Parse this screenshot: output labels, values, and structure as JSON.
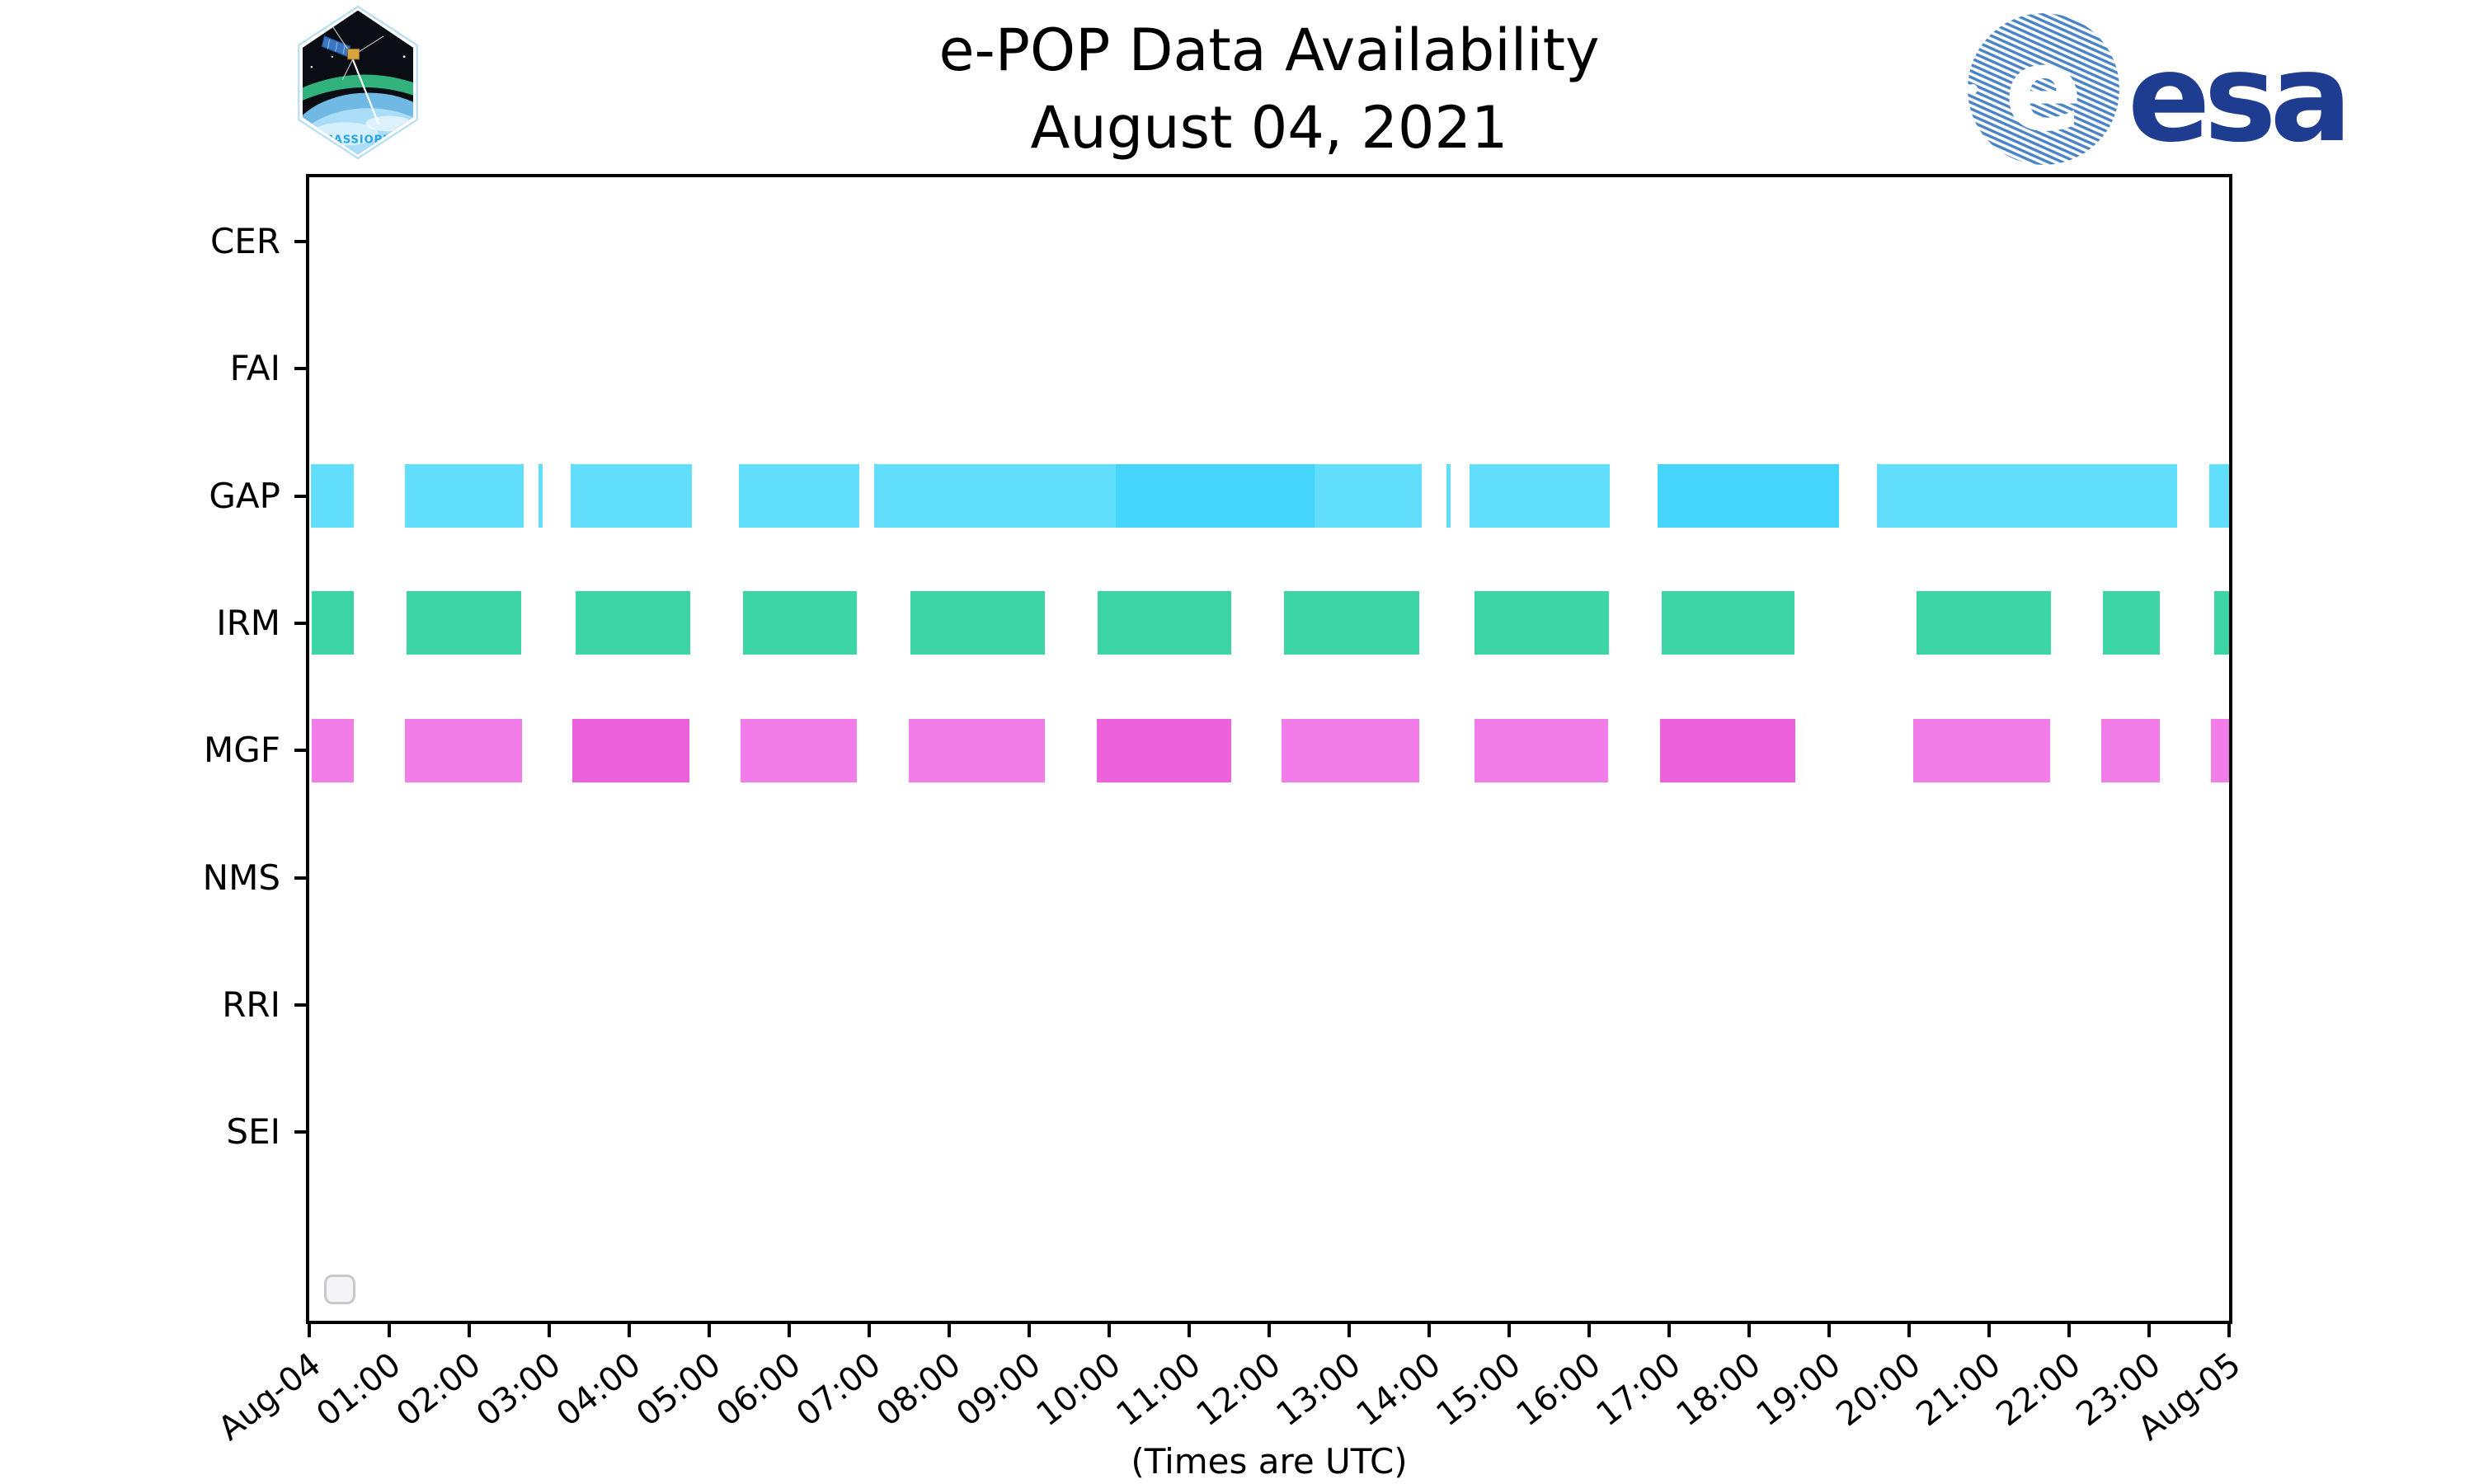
{
  "header": {
    "title_line1": "e-POP Data Availability",
    "title_line2": "August 04, 2021",
    "cassiope_patch_label": "CASSIOPE",
    "esa_wordmark": "esa"
  },
  "axis_note": "(Times are UTC)",
  "chart_data": {
    "type": "bar",
    "subtype": "availability-timeline",
    "title": "e-POP Data Availability",
    "subtitle": "August 04, 2021",
    "xlabel": "(Times are UTC)",
    "ylabel": "",
    "grid": false,
    "legend_position": "lower-left-empty-box",
    "x_range_hours": [
      0,
      24
    ],
    "x_tick_labels": [
      "Aug-04",
      "01:00",
      "02:00",
      "03:00",
      "04:00",
      "05:00",
      "06:00",
      "07:00",
      "08:00",
      "09:00",
      "10:00",
      "11:00",
      "12:00",
      "13:00",
      "14:00",
      "15:00",
      "16:00",
      "17:00",
      "18:00",
      "19:00",
      "20:00",
      "21:00",
      "22:00",
      "23:00",
      "Aug-05"
    ],
    "instruments": [
      "CER",
      "FAI",
      "GAP",
      "IRM",
      "MGF",
      "NMS",
      "RRI",
      "SEI"
    ],
    "colors": {
      "gap_light": "#60defb",
      "gap_dark": "#45d5fa",
      "irm_green": "#3dd5a5",
      "mgf_light": "#f27ce8",
      "mgf_dark": "#ee61dc",
      "axis": "#000000",
      "esa_navy": "#1e3c90",
      "esa_globe_stripe": "#4a84c4",
      "patch_sky": "#0a0d14",
      "patch_text_blue": "#28a7e0"
    },
    "series": [
      {
        "name": "GAP",
        "shades": {
          "light": "#60defb",
          "dark": "#45d5fa"
        },
        "intervals": [
          [
            0.02,
            0.56,
            "light"
          ],
          [
            1.2,
            2.68,
            "light"
          ],
          [
            2.87,
            2.92,
            "light"
          ],
          [
            3.27,
            4.78,
            "light"
          ],
          [
            5.37,
            6.88,
            "light"
          ],
          [
            7.06,
            10.08,
            "light"
          ],
          [
            10.08,
            12.57,
            "dark"
          ],
          [
            12.57,
            13.91,
            "light"
          ],
          [
            14.22,
            14.27,
            "light"
          ],
          [
            14.5,
            16.26,
            "light"
          ],
          [
            16.86,
            19.12,
            "dark"
          ],
          [
            19.6,
            23.35,
            "light"
          ],
          [
            23.75,
            24.0,
            "light"
          ]
        ]
      },
      {
        "name": "IRM",
        "shades": {
          "light": "#3dd5a5",
          "dark": "#3dd5a5"
        },
        "intervals": [
          [
            0.03,
            0.56,
            "light"
          ],
          [
            1.22,
            2.65,
            "light"
          ],
          [
            3.33,
            4.76,
            "light"
          ],
          [
            5.42,
            6.85,
            "light"
          ],
          [
            7.52,
            9.2,
            "light"
          ],
          [
            9.86,
            11.53,
            "light"
          ],
          [
            12.19,
            13.88,
            "light"
          ],
          [
            14.57,
            16.25,
            "light"
          ],
          [
            16.91,
            18.57,
            "light"
          ],
          [
            20.09,
            21.77,
            "light"
          ],
          [
            22.42,
            23.13,
            "light"
          ],
          [
            23.81,
            24.0,
            "light"
          ]
        ]
      },
      {
        "name": "MGF",
        "shades": {
          "light": "#f27ce8",
          "dark": "#ee61dc"
        },
        "intervals": [
          [
            0.03,
            0.56,
            "light"
          ],
          [
            1.2,
            2.66,
            "light"
          ],
          [
            3.29,
            4.75,
            "dark"
          ],
          [
            5.39,
            6.85,
            "light"
          ],
          [
            7.49,
            9.2,
            "light"
          ],
          [
            9.84,
            11.53,
            "dark"
          ],
          [
            12.15,
            13.88,
            "light"
          ],
          [
            14.57,
            16.24,
            "light"
          ],
          [
            16.89,
            18.58,
            "dark"
          ],
          [
            20.05,
            21.76,
            "light"
          ],
          [
            22.4,
            23.13,
            "light"
          ],
          [
            23.77,
            24.0,
            "light"
          ]
        ]
      }
    ]
  }
}
